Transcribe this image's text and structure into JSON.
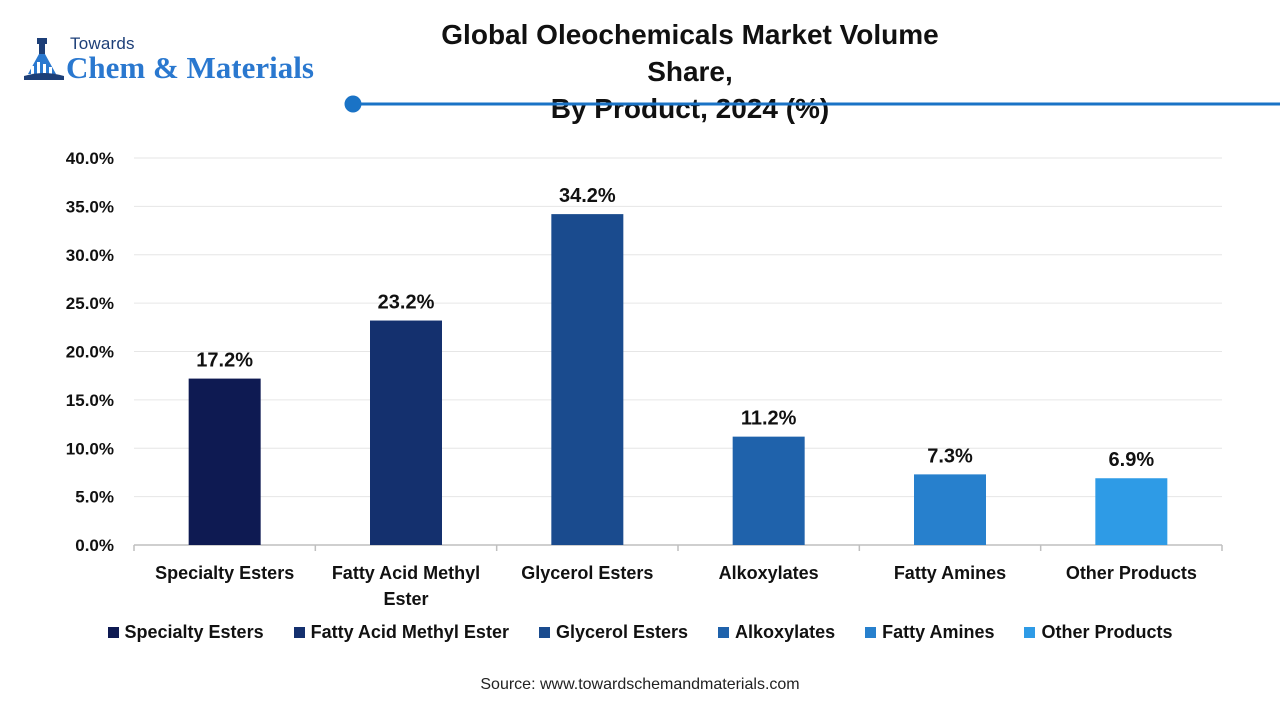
{
  "brand": {
    "small_text": "Towards",
    "big_text": "Chem & Materials",
    "icon": "flask-tower-icon",
    "colors": {
      "dark": "#1d3f78",
      "accent": "#2a78cf"
    }
  },
  "chart_data": {
    "type": "bar",
    "title": "Global Oleochemicals Market Volume Share, By Product, 2024 (%)",
    "title_lines": [
      "Global Oleochemicals Market Volume Share,",
      "By Product, 2024 (%)"
    ],
    "categories": [
      "Specialty Esters",
      "Fatty Acid Methyl Ester",
      "Glycerol Esters",
      "Alkoxylates",
      "Fatty Amines",
      "Other Products"
    ],
    "category_labels": [
      [
        "Specialty Esters"
      ],
      [
        "Fatty Acid Methyl",
        "Ester"
      ],
      [
        "Glycerol Esters"
      ],
      [
        "Alkoxylates"
      ],
      [
        "Fatty Amines"
      ],
      [
        "Other Products"
      ]
    ],
    "values": [
      17.2,
      23.2,
      34.2,
      11.2,
      7.3,
      6.9
    ],
    "data_labels": [
      "17.2%",
      "23.2%",
      "34.2%",
      "11.2%",
      "7.3%",
      "6.9%"
    ],
    "colors": [
      "#0e1a52",
      "#14306e",
      "#1a4b8e",
      "#1f62ab",
      "#2780cd",
      "#2e9be6"
    ],
    "xlabel": "",
    "ylabel": "",
    "ylim": [
      0,
      40
    ],
    "yticks": [
      "0.0%",
      "5.0%",
      "10.0%",
      "15.0%",
      "20.0%",
      "25.0%",
      "30.0%",
      "35.0%",
      "40.0%"
    ],
    "ytick_values": [
      0,
      5,
      10,
      15,
      20,
      25,
      30,
      35,
      40
    ],
    "grid": true,
    "legend_position": "bottom"
  },
  "source": "Source: www.towardschemandmaterials.com",
  "accent_color": "#1a73c6"
}
